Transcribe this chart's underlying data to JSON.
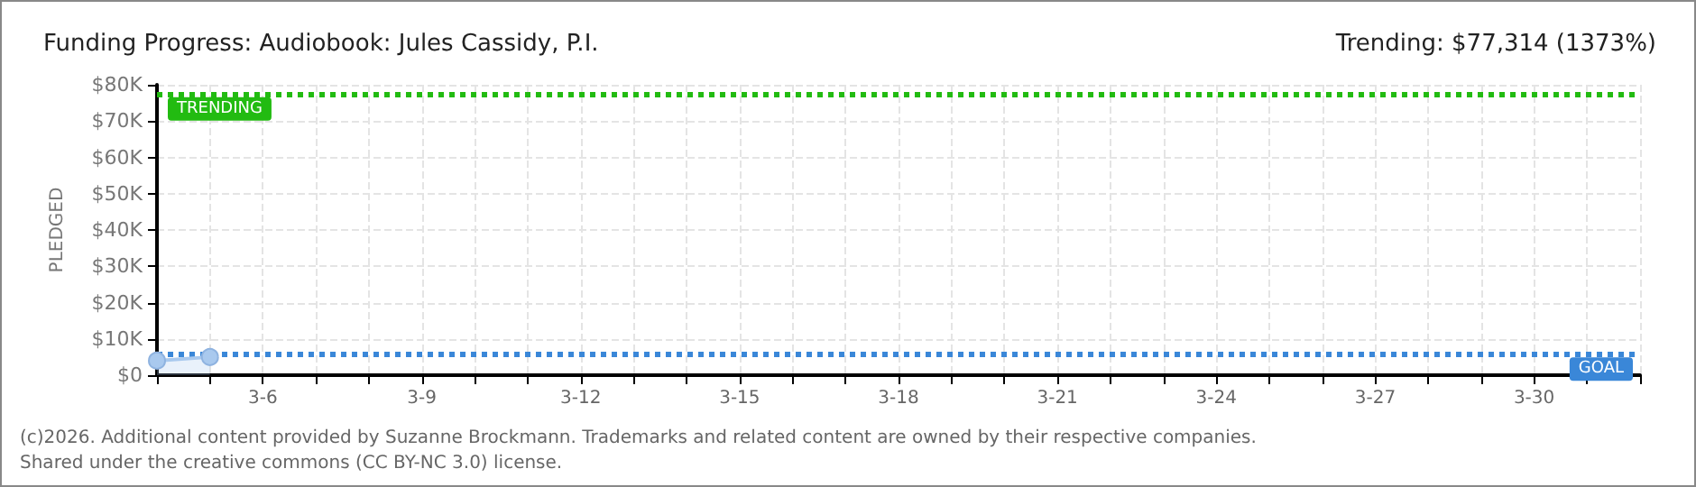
{
  "chart_data": {
    "type": "area",
    "title": "Funding Progress: Audiobook: Jules Cassidy, P.I.",
    "subtitle": "Trending: $77,314 (1373%)",
    "ylabel": "PLEDGED",
    "x": [
      "--03-04",
      "--03-05"
    ],
    "series": [
      {
        "color": "#a9c9ee",
        "values": [
          4000,
          5000
        ]
      }
    ],
    "xlim": [
      "--03-04",
      "--04-01"
    ],
    "xticks": [
      {
        "value": "--03-04",
        "label": null
      },
      {
        "value": "--03-05",
        "label": null
      },
      {
        "value": "--03-06",
        "label": "3-6"
      },
      {
        "value": "--03-07",
        "label": null
      },
      {
        "value": "--03-08",
        "label": null
      },
      {
        "value": "--03-09",
        "label": "3-9"
      },
      {
        "value": "--03-10",
        "label": null
      },
      {
        "value": "--03-11",
        "label": null
      },
      {
        "value": "--03-12",
        "label": "3-12"
      },
      {
        "value": "--03-13",
        "label": null
      },
      {
        "value": "--03-14",
        "label": null
      },
      {
        "value": "--03-15",
        "label": "3-15"
      },
      {
        "value": "--03-16",
        "label": null
      },
      {
        "value": "--03-17",
        "label": null
      },
      {
        "value": "--03-18",
        "label": "3-18"
      },
      {
        "value": "--03-19",
        "label": null
      },
      {
        "value": "--03-20",
        "label": null
      },
      {
        "value": "--03-21",
        "label": "3-21"
      },
      {
        "value": "--03-22",
        "label": null
      },
      {
        "value": "--03-23",
        "label": null
      },
      {
        "value": "--03-24",
        "label": "3-24"
      },
      {
        "value": "--03-25",
        "label": null
      },
      {
        "value": "--03-26",
        "label": null
      },
      {
        "value": "--03-27",
        "label": "3-27"
      },
      {
        "value": "--03-28",
        "label": null
      },
      {
        "value": "--03-29",
        "label": null
      },
      {
        "value": "--03-30",
        "label": "3-30"
      },
      {
        "value": "--03-31",
        "label": null
      },
      {
        "value": "--04-01",
        "label": null
      }
    ],
    "ylim": [
      0,
      80000
    ],
    "yticks": [
      {
        "value": 0,
        "label": "$0"
      },
      {
        "value": 10000,
        "label": "$10K"
      },
      {
        "value": 20000,
        "label": "$20K"
      },
      {
        "value": 30000,
        "label": "$30K"
      },
      {
        "value": 40000,
        "label": "$40K"
      },
      {
        "value": 50000,
        "label": "$50K"
      },
      {
        "value": 60000,
        "label": "$60K"
      },
      {
        "value": 70000,
        "label": "$70K"
      },
      {
        "value": 80000,
        "label": "$80K"
      }
    ],
    "ref_lines": [
      {
        "axis": "y",
        "value": 77314,
        "label": "TRENDING",
        "color": "#22bb11",
        "line_style": "dotted"
      },
      {
        "axis": "y",
        "value": 5631,
        "label": "GOAL",
        "color": "#3a87d8",
        "line_style": "dotted"
      }
    ],
    "annotations": [
      "(c)2026. Additional content provided by Suzanne Brockmann. Trademarks and related content are owned by their respective companies.",
      "Shared under the creative commons (CC BY-NC 3.0) license."
    ],
    "grid": true,
    "marker": "circle",
    "line_style": "solid"
  }
}
